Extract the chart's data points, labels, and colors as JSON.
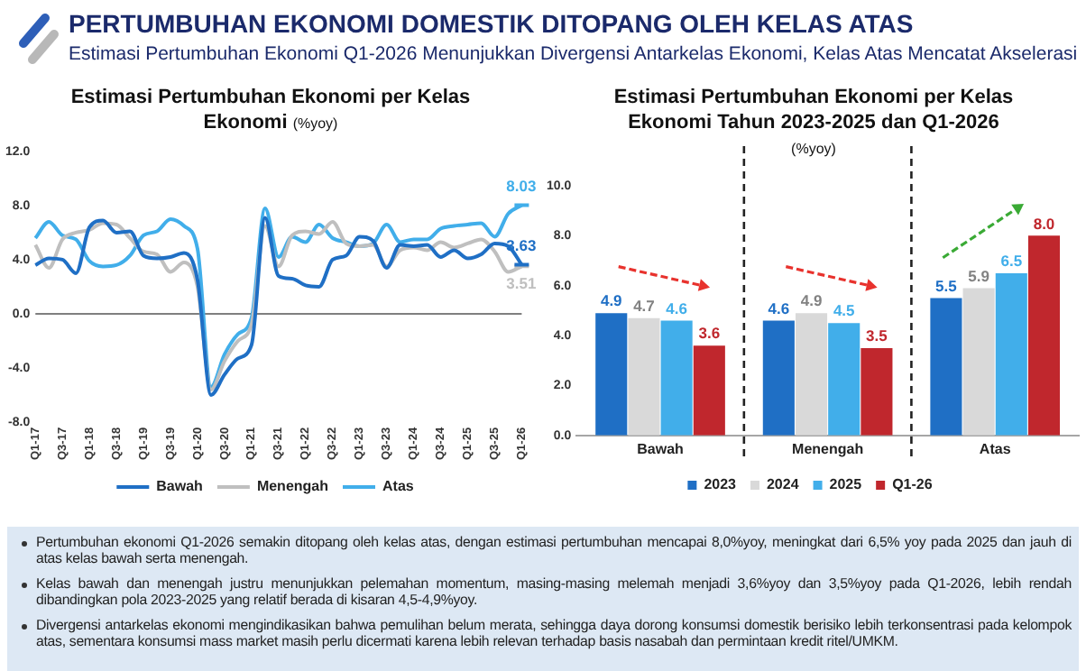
{
  "chart_data": [
    {
      "type": "other",
      "title": "PERTUMBUHAN EKONOMI DOMESTIK DITOPANG OLEH KELAS ATAS",
      "subtitle": "Estimasi Pertumbuhan Ekonomi Q1-2026 Menunjukkan Divergensi Antarkelas Ekonomi, Kelas Atas Mencatat Akselerasi",
      "annotations": [
        "Pertumbuhan ekonomi Q1-2026 semakin ditopang oleh kelas atas, dengan estimasi pertumbuhan mencapai 8,0%yoy, meningkat dari 6,5% yoy pada 2025 dan jauh di atas kelas bawah serta menengah.",
        "Kelas bawah dan menengah justru menunjukkan pelemahan momentum, masing-masing melemah menjadi 3,6%yoy dan 3,5%yoy pada Q1-2026, lebih rendah dibandingkan pola 2023-2025 yang relatif berada di kisaran 4,5-4,9%yoy.",
        "Divergensi antarkelas ekonomi mengindikasikan bahwa pemulihan belum merata, sehingga daya dorong konsumsi domestik berisiko lebih terkonsentrasi pada kelompok atas, sementara konsumsi mass market masih perlu dicermati karena lebih relevan terhadap basis nasabah dan permintaan kredit ritel/UMKM."
      ]
    },
    {
      "type": "line",
      "title": "Estimasi Pertumbuhan Ekonomi per Kelas Ekonomi",
      "subtitle": "(%yoy)",
      "categories": [
        "Q1-17",
        null,
        "Q3-17",
        null,
        "Q1-18",
        null,
        "Q3-18",
        null,
        "Q1-19",
        null,
        "Q3-19",
        null,
        "Q1-20",
        null,
        "Q3-20",
        null,
        "Q1-21",
        null,
        "Q3-21",
        null,
        "Q1-22",
        null,
        "Q3-22",
        null,
        "Q1-23",
        null,
        "Q3-23",
        null,
        "Q1-24",
        null,
        "Q3-24",
        null,
        "Q1-25",
        null,
        "Q3-25",
        null,
        "Q1-26"
      ],
      "series": [
        {
          "name": "Bawah",
          "color": "#1f6fc5",
          "values": [
            3.6,
            4.1,
            4.0,
            3.0,
            6.4,
            6.9,
            6.0,
            6.1,
            4.3,
            4.1,
            4.2,
            4.5,
            2.5,
            -6.0,
            -4.5,
            -3.3,
            -2.3,
            7.1,
            2.8,
            2.6,
            2.1,
            2.0,
            4.0,
            4.3,
            5.7,
            5.4,
            3.4,
            5.1,
            5.0,
            5.1,
            4.2,
            4.7,
            4.1,
            4.4,
            5.2,
            5.0,
            3.63
          ],
          "value_labels": [
            null,
            null,
            null,
            null,
            null,
            null,
            null,
            null,
            null,
            null,
            null,
            null,
            null,
            null,
            null,
            null,
            null,
            null,
            null,
            null,
            null,
            null,
            null,
            null,
            null,
            null,
            null,
            null,
            null,
            null,
            null,
            null,
            null,
            null,
            null,
            null,
            "3.63"
          ]
        },
        {
          "name": "Menengah",
          "color": "#bfbfbf",
          "values": [
            5.1,
            3.4,
            5.5,
            6.0,
            6.2,
            6.7,
            6.6,
            5.6,
            4.6,
            4.4,
            3.1,
            3.8,
            2.0,
            -5.6,
            -3.5,
            -2.0,
            -0.8,
            6.5,
            3.5,
            5.8,
            6.1,
            5.9,
            6.8,
            5.2,
            5.0,
            5.1,
            3.5,
            4.7,
            4.9,
            4.7,
            5.3,
            4.9,
            5.2,
            5.5,
            4.6,
            3.1,
            3.51
          ],
          "value_labels": [
            null,
            null,
            null,
            null,
            null,
            null,
            null,
            null,
            null,
            null,
            null,
            null,
            null,
            null,
            null,
            null,
            null,
            null,
            null,
            null,
            null,
            null,
            null,
            null,
            null,
            null,
            null,
            null,
            null,
            null,
            null,
            null,
            null,
            null,
            null,
            null,
            "3.51"
          ]
        },
        {
          "name": "Atas",
          "color": "#41aeea",
          "values": [
            5.6,
            6.8,
            5.8,
            5.5,
            3.9,
            3.5,
            3.6,
            4.3,
            5.8,
            6.1,
            7.0,
            6.5,
            4.8,
            -5.4,
            -3.0,
            -1.5,
            -0.3,
            7.8,
            4.2,
            5.7,
            5.3,
            6.6,
            5.6,
            5.3,
            5.0,
            5.2,
            6.6,
            5.3,
            5.5,
            5.5,
            6.3,
            6.5,
            6.6,
            6.7,
            5.7,
            7.4,
            8.03
          ],
          "value_labels": [
            null,
            null,
            null,
            null,
            null,
            null,
            null,
            null,
            null,
            null,
            null,
            null,
            null,
            null,
            null,
            null,
            null,
            null,
            null,
            null,
            null,
            null,
            null,
            null,
            null,
            null,
            null,
            null,
            null,
            null,
            null,
            null,
            null,
            null,
            null,
            null,
            "8.03"
          ]
        }
      ],
      "ylim": [
        -8,
        12
      ],
      "yticks": [
        {
          "value": -8,
          "label": "-8.0"
        },
        {
          "value": -4,
          "label": "-4.0"
        },
        {
          "value": 0,
          "label": "0.0"
        },
        {
          "value": 4,
          "label": "4.0"
        },
        {
          "value": 8,
          "label": "8.0"
        },
        {
          "value": 12,
          "label": "12.0"
        }
      ],
      "ref_lines": [
        {
          "axis": "y",
          "value": 0,
          "color": "#7f7f7f"
        }
      ],
      "legend": "bottom"
    },
    {
      "type": "bar",
      "title": "Estimasi Pertumbuhan Ekonomi per Kelas Ekonomi Tahun 2023-2025 dan Q1-2026",
      "subtitle": "(%yoy)",
      "categories": [
        "Bawah",
        "Menengah",
        "Atas"
      ],
      "series": [
        {
          "name": "2023",
          "color": "#1f6fc5",
          "values": [
            4.9,
            4.6,
            5.5
          ],
          "value_labels": [
            "4.9",
            "4.6",
            "5.5"
          ]
        },
        {
          "name": "2024",
          "color": "#d9d9d9",
          "values": [
            4.7,
            4.9,
            5.9
          ],
          "value_labels": [
            "4.7",
            "4.9",
            "5.9"
          ]
        },
        {
          "name": "2025",
          "color": "#41aeea",
          "values": [
            4.6,
            4.5,
            6.5
          ],
          "value_labels": [
            "4.6",
            "4.5",
            "6.5"
          ]
        },
        {
          "name": "Q1-26",
          "color": "#c0272d",
          "values": [
            3.6,
            3.5,
            8.0
          ],
          "value_labels": [
            "3.6",
            "3.5",
            "8.0"
          ]
        }
      ],
      "ylim": [
        0,
        10
      ],
      "yticks": [
        {
          "value": 0,
          "label": "0.0"
        },
        {
          "value": 2,
          "label": "2.0"
        },
        {
          "value": 4,
          "label": "4.0"
        },
        {
          "value": 6,
          "label": "6.0"
        },
        {
          "value": 8,
          "label": "8.0"
        },
        {
          "value": 10,
          "label": "10.0"
        }
      ],
      "legend": "bottom"
    }
  ]
}
